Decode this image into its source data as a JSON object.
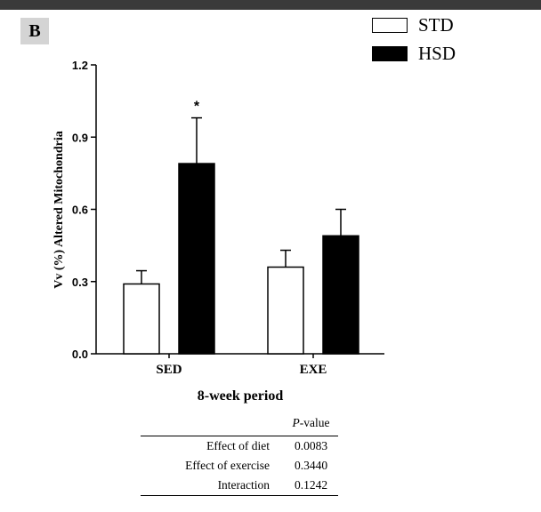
{
  "panel_label": "B",
  "legend": [
    {
      "label": "STD",
      "fill": "#ffffff"
    },
    {
      "label": "HSD",
      "fill": "#000000"
    }
  ],
  "chart_data": {
    "type": "bar",
    "categories": [
      "SED",
      "EXE"
    ],
    "series": [
      {
        "name": "STD",
        "values": [
          0.29,
          0.36
        ],
        "errors": [
          0.055,
          0.07
        ],
        "color": "#ffffff"
      },
      {
        "name": "HSD",
        "values": [
          0.79,
          0.49
        ],
        "errors": [
          0.19,
          0.11
        ],
        "color": "#000000"
      }
    ],
    "annotations": [
      {
        "category": "SED",
        "series": "HSD",
        "text": "*"
      }
    ],
    "xlabel": "8-week period",
    "ylabel": "Vv (%) Altered Mitochondria",
    "ylim": [
      0,
      1.2
    ],
    "yticks": [
      "0.0",
      "0.3",
      "0.6",
      "0.9",
      "1.2"
    ],
    "grid": false,
    "legend_position": "top-right"
  },
  "table": {
    "header_p": "P",
    "header_value": "-value",
    "rows": [
      {
        "effect": "Effect of diet",
        "value": "0.0083"
      },
      {
        "effect": "Effect of exercise",
        "value": "0.3440"
      },
      {
        "effect": "Interaction",
        "value": "0.1242"
      }
    ]
  }
}
